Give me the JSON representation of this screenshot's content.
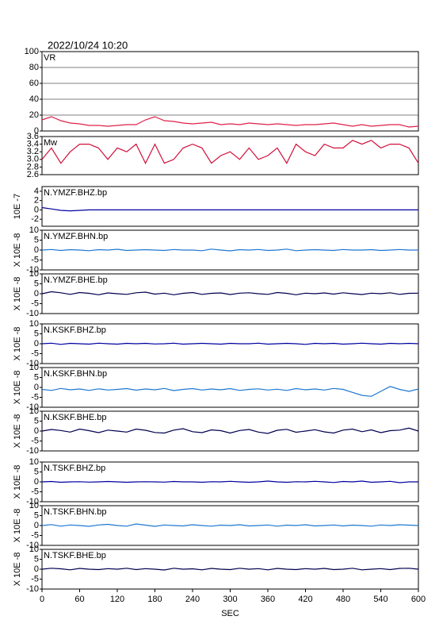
{
  "timestamp": "2022/10/24 10:20",
  "chart_data": [
    {
      "type": "line",
      "title": "VR",
      "color": "#e0204a",
      "grid": true,
      "xlim": [
        0,
        600
      ],
      "ylim": [
        0,
        100
      ],
      "yticks": [
        0,
        20,
        40,
        60,
        80,
        100
      ],
      "x": [
        0,
        15,
        30,
        45,
        60,
        75,
        90,
        105,
        120,
        135,
        150,
        165,
        180,
        195,
        210,
        225,
        240,
        255,
        270,
        285,
        300,
        315,
        330,
        345,
        360,
        375,
        390,
        405,
        420,
        435,
        450,
        465,
        480,
        495,
        510,
        525,
        540,
        555,
        570,
        585,
        600
      ],
      "values": [
        14,
        18,
        13,
        10,
        9,
        7,
        7,
        6,
        7,
        8,
        8,
        14,
        18,
        13,
        12,
        10,
        9,
        10,
        11,
        8,
        9,
        8,
        10,
        9,
        8,
        9,
        8,
        7,
        8,
        8,
        9,
        10,
        8,
        6,
        8,
        6,
        7,
        8,
        8,
        5,
        6
      ]
    },
    {
      "type": "line",
      "title": "Mw",
      "color": "#d0103a",
      "grid": false,
      "xlim": [
        0,
        600
      ],
      "ylim": [
        2.6,
        3.6
      ],
      "yticks": [
        2.6,
        2.8,
        {
          "value": 3,
          "label": "3.0"
        },
        3.2,
        3.4,
        3.6
      ],
      "x": [
        0,
        15,
        30,
        45,
        60,
        75,
        90,
        105,
        120,
        135,
        150,
        165,
        180,
        195,
        210,
        225,
        240,
        255,
        270,
        285,
        300,
        315,
        330,
        345,
        360,
        375,
        390,
        405,
        420,
        435,
        450,
        465,
        480,
        495,
        510,
        525,
        540,
        555,
        570,
        585,
        600
      ],
      "values": [
        3.0,
        3.3,
        2.9,
        3.2,
        3.4,
        3.4,
        3.3,
        3.0,
        3.3,
        3.2,
        3.4,
        2.9,
        3.4,
        2.9,
        3.0,
        3.3,
        3.4,
        3.3,
        2.9,
        3.1,
        3.2,
        3.0,
        3.3,
        3.0,
        3.1,
        3.3,
        2.9,
        3.4,
        3.2,
        3.1,
        3.4,
        3.3,
        3.3,
        3.5,
        3.4,
        3.5,
        3.3,
        3.4,
        3.4,
        3.3,
        2.9
      ]
    },
    {
      "type": "line",
      "title": "N.YMZF.BHZ.bp",
      "ylabel": "10E -7",
      "color": "#0000a0",
      "grid": false,
      "xlim": [
        0,
        600
      ],
      "ylim": [
        -3.5,
        5
      ],
      "yticks": [
        -2,
        0,
        2,
        4
      ],
      "x": [
        0,
        15,
        30,
        45,
        60,
        75,
        90,
        105,
        120,
        135,
        150,
        165,
        180,
        195,
        210,
        225,
        240,
        255,
        270,
        285,
        300,
        315,
        330,
        345,
        360,
        375,
        390,
        405,
        420,
        435,
        450,
        465,
        480,
        495,
        510,
        525,
        540,
        555,
        570,
        585,
        600
      ],
      "values": [
        0.5,
        0.2,
        -0.1,
        -0.2,
        -0.1,
        0,
        0,
        0,
        0,
        0,
        0,
        0,
        0,
        0,
        0,
        0,
        0,
        0,
        0,
        0,
        0,
        0,
        0,
        0,
        0,
        0,
        0,
        0,
        0,
        0,
        0,
        0,
        0,
        0,
        0,
        0,
        0,
        0,
        0,
        0,
        0
      ]
    },
    {
      "type": "line",
      "title": "N.YMZF.BHN.bp",
      "ylabel": "X 10E -8",
      "color": "#1e78d0",
      "grid": false,
      "xlim": [
        0,
        600
      ],
      "ylim": [
        -10,
        10
      ],
      "yticks": [
        -10,
        -5,
        0,
        5,
        10
      ],
      "x": [
        0,
        15,
        30,
        45,
        60,
        75,
        90,
        105,
        120,
        135,
        150,
        165,
        180,
        195,
        210,
        225,
        240,
        255,
        270,
        285,
        300,
        315,
        330,
        345,
        360,
        375,
        390,
        405,
        420,
        435,
        450,
        465,
        480,
        495,
        510,
        525,
        540,
        555,
        570,
        585,
        600
      ],
      "values": [
        0,
        0.3,
        -0.2,
        0.2,
        0,
        -0.3,
        0.2,
        0,
        0.4,
        -0.2,
        0,
        0.2,
        0,
        -0.2,
        0.3,
        0,
        0,
        -0.3,
        0.5,
        0,
        -0.4,
        0.2,
        0,
        0.3,
        -0.2,
        0,
        0.5,
        -0.3,
        0,
        0.2,
        0,
        -0.2,
        0.3,
        0,
        0,
        0.2,
        -0.2,
        0,
        0.3,
        0,
        0
      ]
    },
    {
      "type": "line",
      "title": "N.YMZF.BHE.bp",
      "ylabel": "X 10E -8",
      "color": "#000050",
      "grid": false,
      "xlim": [
        0,
        600
      ],
      "ylim": [
        -10,
        10
      ],
      "yticks": [
        -10,
        -5,
        0,
        5,
        10
      ],
      "x": [
        0,
        15,
        30,
        45,
        60,
        75,
        90,
        105,
        120,
        135,
        150,
        165,
        180,
        195,
        210,
        225,
        240,
        255,
        270,
        285,
        300,
        315,
        330,
        345,
        360,
        375,
        390,
        405,
        420,
        435,
        450,
        465,
        480,
        495,
        510,
        525,
        540,
        555,
        570,
        585,
        600
      ],
      "values": [
        0,
        1,
        0.5,
        -0.3,
        0.6,
        0.2,
        -0.5,
        0.4,
        0,
        -0.3,
        0.5,
        0.8,
        -0.2,
        0.3,
        -0.5,
        0.2,
        0.6,
        -0.3,
        0.2,
        0.4,
        -0.4,
        0.3,
        0.5,
        0,
        -0.3,
        0.6,
        0.2,
        -0.5,
        0.3,
        0,
        0.4,
        -0.2,
        0.5,
        0,
        -0.4,
        0.3,
        0,
        0.5,
        -0.3,
        0.2,
        0.3
      ]
    },
    {
      "type": "line",
      "title": "N.KSKF.BHZ.bp",
      "ylabel": "X 10E -8",
      "color": "#0000a0",
      "grid": false,
      "xlim": [
        0,
        600
      ],
      "ylim": [
        -10,
        10
      ],
      "yticks": [
        -10,
        -5,
        0,
        5,
        10
      ],
      "x": [
        0,
        15,
        30,
        45,
        60,
        75,
        90,
        105,
        120,
        135,
        150,
        165,
        180,
        195,
        210,
        225,
        240,
        255,
        270,
        285,
        300,
        315,
        330,
        345,
        360,
        375,
        390,
        405,
        420,
        435,
        450,
        465,
        480,
        495,
        510,
        525,
        540,
        555,
        570,
        585,
        600
      ],
      "values": [
        0,
        0.3,
        -0.3,
        0.2,
        0,
        -0.2,
        0.3,
        0,
        -0.2,
        0.2,
        0,
        0.2,
        -0.1,
        0,
        0.3,
        -0.2,
        0,
        0.2,
        0,
        -0.2,
        0.2,
        0,
        0,
        0.3,
        -0.2,
        0,
        0.2,
        0,
        -0.3,
        0.2,
        0,
        0.2,
        -0.2,
        0,
        0.3,
        0,
        -0.2,
        0.2,
        0,
        0.2,
        0
      ]
    },
    {
      "type": "line",
      "title": "N.KSKF.BHN.bp",
      "ylabel": "X 10E -8",
      "color": "#1e78d0",
      "grid": false,
      "xlim": [
        0,
        600
      ],
      "ylim": [
        -10,
        10
      ],
      "yticks": [
        -10,
        -5,
        0,
        5,
        10
      ],
      "x": [
        0,
        15,
        30,
        45,
        60,
        75,
        90,
        105,
        120,
        135,
        150,
        165,
        180,
        195,
        210,
        225,
        240,
        255,
        270,
        285,
        300,
        315,
        330,
        345,
        360,
        375,
        390,
        405,
        420,
        435,
        450,
        465,
        480,
        495,
        510,
        525,
        540,
        555,
        570,
        585,
        600
      ],
      "values": [
        -1,
        -1.5,
        -0.5,
        -1.2,
        -0.8,
        -1.5,
        -0.7,
        -1.3,
        -1,
        -0.6,
        -1.4,
        -0.8,
        -1.2,
        -0.5,
        -1.6,
        -1,
        -0.6,
        -1.3,
        -0.8,
        -1.2,
        -0.6,
        -1.5,
        -1,
        -0.7,
        -1.3,
        -0.9,
        -1.5,
        -0.6,
        -1.2,
        -0.8,
        -1.3,
        -0.5,
        -1,
        -2.5,
        -4,
        -4.5,
        -2,
        0.5,
        -1,
        -2,
        -0.8
      ]
    },
    {
      "type": "line",
      "title": "N.KSKF.BHE.bp",
      "ylabel": "X 10E -8",
      "color": "#000050",
      "grid": false,
      "xlim": [
        0,
        600
      ],
      "ylim": [
        -10,
        10
      ],
      "yticks": [
        -10,
        -5,
        0,
        5,
        10
      ],
      "x": [
        0,
        15,
        30,
        45,
        60,
        75,
        90,
        105,
        120,
        135,
        150,
        165,
        180,
        195,
        210,
        225,
        240,
        255,
        270,
        285,
        300,
        315,
        330,
        345,
        360,
        375,
        390,
        405,
        420,
        435,
        450,
        465,
        480,
        495,
        510,
        525,
        540,
        555,
        570,
        585,
        600
      ],
      "values": [
        0,
        0.8,
        0.3,
        -0.5,
        1,
        0.2,
        -0.8,
        0.5,
        0,
        -0.5,
        1,
        0.4,
        -0.7,
        -1,
        0.5,
        1.2,
        -0.3,
        -0.8,
        0.6,
        0.2,
        -1,
        0.3,
        0.8,
        -0.5,
        -1.2,
        0.4,
        0.9,
        -0.6,
        0,
        0.7,
        -0.4,
        -1,
        0.5,
        1,
        -0.3,
        0.6,
        -0.8,
        0.2,
        0.5,
        1.5,
        0
      ]
    },
    {
      "type": "line",
      "title": "N.TSKF.BHZ.bp",
      "ylabel": "X 10E -8",
      "color": "#0000a0",
      "grid": false,
      "xlim": [
        0,
        600
      ],
      "ylim": [
        -10,
        10
      ],
      "yticks": [
        -10,
        -5,
        0,
        5,
        10
      ],
      "x": [
        0,
        15,
        30,
        45,
        60,
        75,
        90,
        105,
        120,
        135,
        150,
        165,
        180,
        195,
        210,
        225,
        240,
        255,
        270,
        285,
        300,
        315,
        330,
        345,
        360,
        375,
        390,
        405,
        420,
        435,
        450,
        465,
        480,
        495,
        510,
        525,
        540,
        555,
        570,
        585,
        600
      ],
      "values": [
        0,
        0.2,
        -0.2,
        0,
        0.1,
        -0.1,
        0,
        0.2,
        0,
        -0.2,
        0,
        0.1,
        0,
        -0.1,
        0.2,
        0,
        0,
        -0.2,
        0.1,
        0,
        0.3,
        0,
        -0.2,
        0,
        0.4,
        0,
        -0.2,
        0.1,
        0,
        0.3,
        0,
        -0.3,
        0.2,
        0,
        0.4,
        -0.2,
        0,
        0.3,
        -0.4,
        0,
        0
      ]
    },
    {
      "type": "line",
      "title": "N.TSKF.BHN.bp",
      "ylabel": "X 10E -8",
      "color": "#1e78d0",
      "grid": false,
      "xlim": [
        0,
        600
      ],
      "ylim": [
        -10,
        10
      ],
      "yticks": [
        -10,
        -5,
        0,
        5,
        10
      ],
      "x": [
        0,
        15,
        30,
        45,
        60,
        75,
        90,
        105,
        120,
        135,
        150,
        165,
        180,
        195,
        210,
        225,
        240,
        255,
        270,
        285,
        300,
        315,
        330,
        345,
        360,
        375,
        390,
        405,
        420,
        435,
        450,
        465,
        480,
        495,
        510,
        525,
        540,
        555,
        570,
        585,
        600
      ],
      "values": [
        0,
        0.5,
        -0.3,
        0.3,
        0,
        -0.4,
        0.3,
        0.6,
        0,
        -0.3,
        0.8,
        0.2,
        -0.4,
        0.3,
        0,
        -0.2,
        0.4,
        0,
        -0.3,
        0.2,
        0,
        0.4,
        -0.2,
        0,
        0.3,
        -0.3,
        0.2,
        0,
        0.4,
        -0.2,
        0,
        0.3,
        -0.2,
        0.2,
        0,
        -0.3,
        0.3,
        0,
        0.4,
        0.2,
        0
      ]
    },
    {
      "type": "line",
      "title": "N.TSKF.BHE.bp",
      "ylabel": "X 10E -8",
      "color": "#000050",
      "grid": false,
      "xlim": [
        0,
        600
      ],
      "ylim": [
        -10,
        10
      ],
      "yticks": [
        -10,
        -5,
        0,
        5,
        10
      ],
      "xlabel": "SEC",
      "xticks": [
        0,
        60,
        120,
        180,
        240,
        300,
        360,
        420,
        480,
        540,
        600
      ],
      "x": [
        0,
        15,
        30,
        45,
        60,
        75,
        90,
        105,
        120,
        135,
        150,
        165,
        180,
        195,
        210,
        225,
        240,
        255,
        270,
        285,
        300,
        315,
        330,
        345,
        360,
        375,
        390,
        405,
        420,
        435,
        450,
        465,
        480,
        495,
        510,
        525,
        540,
        555,
        570,
        585,
        600
      ],
      "values": [
        0,
        0.5,
        0.2,
        -0.3,
        0.4,
        0,
        -0.2,
        0.3,
        0,
        0.5,
        -0.2,
        0.3,
        0,
        -0.4,
        0.5,
        0,
        0.2,
        -0.3,
        0.4,
        0,
        -0.2,
        0.5,
        0,
        0.3,
        -0.3,
        0.4,
        0,
        -0.2,
        0.3,
        0,
        0.4,
        -0.2,
        0,
        0.5,
        -0.3,
        0,
        0.3,
        -0.2,
        0.4,
        0.5,
        0
      ]
    }
  ]
}
